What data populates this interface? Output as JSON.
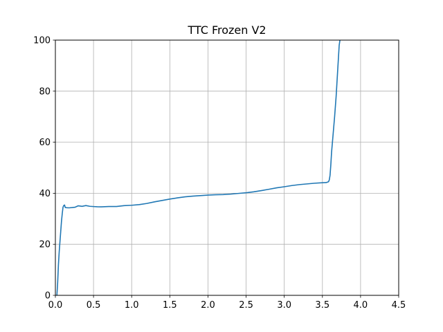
{
  "chart_data": {
    "type": "line",
    "title": "TTC Frozen V2",
    "xlabel": "",
    "ylabel": "",
    "xlim": [
      0,
      4.5
    ],
    "ylim": [
      0,
      100
    ],
    "grid": true,
    "x_ticks": [
      0.0,
      0.5,
      1.0,
      1.5,
      2.0,
      2.5,
      3.0,
      3.5,
      4.0,
      4.5
    ],
    "x_tick_labels": [
      "0.0",
      "0.5",
      "1.0",
      "1.5",
      "2.0",
      "2.5",
      "3.0",
      "3.5",
      "4.0",
      "4.5"
    ],
    "y_ticks": [
      0,
      20,
      40,
      60,
      80,
      100
    ],
    "y_tick_labels": [
      "0",
      "20",
      "40",
      "60",
      "80",
      "100"
    ],
    "series": [
      {
        "color": "#1f77b4",
        "x": [
          0.02,
          0.03,
          0.04,
          0.05,
          0.06,
          0.07,
          0.08,
          0.09,
          0.1,
          0.11,
          0.12,
          0.13,
          0.15,
          0.18,
          0.22,
          0.26,
          0.3,
          0.35,
          0.4,
          0.45,
          0.5,
          0.55,
          0.6,
          0.7,
          0.8,
          0.9,
          1.0,
          1.1,
          1.2,
          1.3,
          1.4,
          1.5,
          1.6,
          1.7,
          1.8,
          1.9,
          2.0,
          2.1,
          2.2,
          2.3,
          2.4,
          2.5,
          2.6,
          2.7,
          2.8,
          2.9,
          3.0,
          3.1,
          3.2,
          3.3,
          3.4,
          3.5,
          3.55,
          3.58,
          3.59,
          3.6,
          3.61,
          3.62,
          3.64,
          3.66,
          3.68,
          3.69,
          3.7,
          3.71,
          3.72,
          3.73
        ],
        "y": [
          0,
          5,
          12,
          17,
          21,
          25,
          29,
          32,
          34.5,
          35.2,
          35.4,
          35.0,
          34.9,
          34.7,
          34.6,
          34.5,
          34.8,
          34.4,
          34.6,
          34.3,
          34.3,
          34.4,
          34.6,
          35.0,
          35.2,
          35.7,
          35.9,
          36.1,
          36.4,
          36.8,
          37.1,
          37.4,
          37.7,
          38.0,
          38.3,
          38.6,
          39.0,
          39.4,
          39.7,
          40.1,
          40.5,
          40.8,
          41.1,
          41.4,
          41.7,
          42.0,
          42.2,
          42.5,
          42.8,
          43.1,
          43.5,
          43.9,
          44.2,
          44.5,
          45.2,
          47.0,
          51.0,
          56.0,
          63.0,
          70.0,
          78.0,
          83.0,
          88.0,
          93.0,
          98.0,
          100
        ]
      }
    ]
  }
}
